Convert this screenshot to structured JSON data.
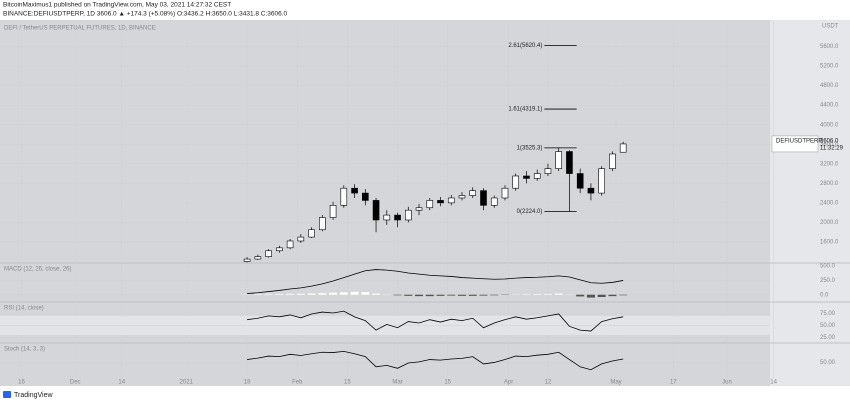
{
  "header": {
    "line1": "BitcoinMaximus1 published on TradingView.com, May 03, 2021 14:27:32 CEST",
    "line2": "BINANCE:DEFIUSDTPERP, 1D  3606.0 ▲ +174.3 (+5.08%)  O:3436.2  H:3650.0  L:3431.8  C:3606.0"
  },
  "footer": {
    "brand": "TradingView"
  },
  "price_tag": {
    "symbol": "DEFIUSDTPERP",
    "price": "3606.0",
    "countdown": "11:32:29"
  },
  "chart_data": [
    {
      "type": "candlestick",
      "title": "DEFI / TetherUS PERPETUAL FUTURES, 1D, BINANCE",
      "axis_unit": "USDT",
      "x": [
        "2021-01-18",
        "2021-01-21",
        "2021-01-24",
        "2021-01-27",
        "2021-01-30",
        "2021-02-02",
        "2021-02-05",
        "2021-02-08",
        "2021-02-11",
        "2021-02-14",
        "2021-02-17",
        "2021-02-20",
        "2021-02-23",
        "2021-02-26",
        "2021-03-01",
        "2021-03-04",
        "2021-03-07",
        "2021-03-10",
        "2021-03-13",
        "2021-03-16",
        "2021-03-19",
        "2021-03-22",
        "2021-03-25",
        "2021-03-28",
        "2021-03-31",
        "2021-04-03",
        "2021-04-06",
        "2021-04-09",
        "2021-04-12",
        "2021-04-15",
        "2021-04-18",
        "2021-04-21",
        "2021-04-24",
        "2021-04-27",
        "2021-04-30",
        "2021-05-03"
      ],
      "open": [
        1200,
        1250,
        1300,
        1420,
        1480,
        1620,
        1700,
        1850,
        2100,
        2350,
        2700,
        2600,
        2450,
        2050,
        2150,
        2050,
        2250,
        2300,
        2450,
        2400,
        2500,
        2550,
        2650,
        2350,
        2500,
        2700,
        2950,
        2900,
        3000,
        3100,
        3450,
        3000,
        2700,
        2600,
        3100,
        3436.2
      ],
      "high": [
        1290,
        1340,
        1450,
        1520,
        1660,
        1760,
        1900,
        2150,
        2420,
        2760,
        2780,
        2680,
        2500,
        2250,
        2200,
        2320,
        2380,
        2500,
        2520,
        2560,
        2620,
        2720,
        2700,
        2550,
        2760,
        3000,
        3050,
        3080,
        3200,
        3525.3,
        3480,
        3100,
        2800,
        3150,
        3450,
        3650
      ],
      "low": [
        1180,
        1230,
        1280,
        1380,
        1450,
        1580,
        1680,
        1820,
        2050,
        2300,
        2500,
        2350,
        1800,
        1950,
        1900,
        2000,
        2150,
        2250,
        2330,
        2350,
        2450,
        2500,
        2250,
        2300,
        2450,
        2650,
        2800,
        2850,
        2950,
        3050,
        2224,
        2600,
        2450,
        2550,
        3050,
        3431.8
      ],
      "close": [
        1250,
        1300,
        1420,
        1480,
        1620,
        1700,
        1850,
        2100,
        2350,
        2700,
        2600,
        2450,
        2050,
        2150,
        2050,
        2250,
        2300,
        2450,
        2400,
        2500,
        2550,
        2650,
        2350,
        2500,
        2700,
        2950,
        2900,
        3000,
        3100,
        3450,
        3000,
        2700,
        2600,
        3100,
        3400,
        3606
      ],
      "up_color": "#ffffff",
      "down_color": "#000000",
      "xlim": [
        "2020-11-10",
        "2021-06-13"
      ],
      "xticks": [
        {
          "value": "2020-11-16",
          "label": "16"
        },
        {
          "value": "2020-12-01",
          "label": "Dec"
        },
        {
          "value": "2020-12-14",
          "label": "14"
        },
        {
          "value": "2021-01-01",
          "label": "2021"
        },
        {
          "value": "2021-01-18",
          "label": "18"
        },
        {
          "value": "2021-02-01",
          "label": "Feb"
        },
        {
          "value": "2021-02-15",
          "label": "15"
        },
        {
          "value": "2021-03-01",
          "label": "Mar"
        },
        {
          "value": "2021-03-15",
          "label": "15"
        },
        {
          "value": "2021-04-01",
          "label": "Apr"
        },
        {
          "value": "2021-04-12",
          "label": "12"
        },
        {
          "value": "2021-05-01",
          "label": "May"
        },
        {
          "value": "2021-05-17",
          "label": "17"
        },
        {
          "value": "2021-06-01",
          "label": "Jun"
        },
        {
          "value": "2021-06-14",
          "label": "14"
        }
      ],
      "ylim": [
        1190,
        6060
      ],
      "yticks": [
        {
          "value": 1600,
          "label": "1600.0"
        },
        {
          "value": 2000,
          "label": "2000.0"
        },
        {
          "value": 2400,
          "label": "2400.0"
        },
        {
          "value": 2800,
          "label": "2800.0"
        },
        {
          "value": 3200,
          "label": "3200.0"
        },
        {
          "value": 3600,
          "label": "3600.0"
        },
        {
          "value": 4000,
          "label": "4000.0"
        },
        {
          "value": 4400,
          "label": "4400.0"
        },
        {
          "value": 4800,
          "label": "4800.0"
        },
        {
          "value": 5200,
          "label": "5200.0"
        },
        {
          "value": 5600,
          "label": "5600.0"
        }
      ],
      "annotations": [
        {
          "label": "2.61(5620.4)",
          "value": 5620.4,
          "x": [
            "2021-04-11",
            "2021-04-20"
          ]
        },
        {
          "label": "1.61(4319.1)",
          "value": 4319.1,
          "x": [
            "2021-04-11",
            "2021-04-20"
          ]
        },
        {
          "label": "1(3525.3)",
          "value": 3525.3,
          "x": [
            "2021-04-11",
            "2021-04-20"
          ]
        },
        {
          "label": "0(2224.0)",
          "value": 2224.0,
          "x": [
            "2021-04-11",
            "2021-04-20"
          ]
        }
      ]
    },
    {
      "type": "macd",
      "title": "MACD (12, 26, close, 26)",
      "series": [
        {
          "name": "MACD",
          "color": "#000000",
          "values": [
            20,
            35,
            55,
            75,
            100,
            120,
            150,
            190,
            240,
            300,
            360,
            420,
            440,
            430,
            410,
            380,
            360,
            340,
            330,
            320,
            300,
            290,
            280,
            270,
            275,
            290,
            300,
            305,
            315,
            330,
            310,
            260,
            210,
            200,
            215,
            250
          ]
        },
        {
          "name": "Histogram",
          "color": "#555555",
          "values": [
            5,
            8,
            10,
            12,
            15,
            18,
            22,
            28,
            35,
            42,
            50,
            45,
            20,
            5,
            -10,
            -20,
            -25,
            -25,
            -20,
            -15,
            -20,
            -20,
            -15,
            -10,
            -5,
            5,
            8,
            10,
            12,
            20,
            5,
            -30,
            -50,
            -40,
            -25,
            -10
          ]
        }
      ],
      "ylim": [
        -110,
        520
      ],
      "yticks": [
        {
          "value": 0,
          "label": "0.0"
        },
        {
          "value": 250,
          "label": "250.0"
        },
        {
          "value": 500,
          "label": "500.0"
        }
      ]
    },
    {
      "type": "line",
      "title": "RSI (14, close)",
      "series": [
        {
          "name": "RSI",
          "color": "#000000",
          "values": [
            62,
            65,
            70,
            68,
            72,
            66,
            74,
            78,
            76,
            80,
            68,
            60,
            40,
            52,
            45,
            58,
            55,
            62,
            57,
            63,
            60,
            65,
            45,
            55,
            62,
            68,
            63,
            66,
            70,
            74,
            48,
            40,
            38,
            58,
            64,
            68
          ]
        }
      ],
      "band": [
        30,
        70
      ],
      "ylim": [
        15,
        95
      ],
      "yticks": [
        {
          "value": 25,
          "label": "25.00"
        },
        {
          "value": 50,
          "label": "50.00"
        },
        {
          "value": 75,
          "label": "75.00"
        }
      ]
    },
    {
      "type": "line",
      "title": "Stoch (14, 3, 3)",
      "series": [
        {
          "name": "%K",
          "color": "#000000",
          "values": [
            60,
            65,
            72,
            70,
            78,
            74,
            80,
            85,
            84,
            88,
            80,
            70,
            35,
            40,
            30,
            48,
            52,
            60,
            58,
            62,
            64,
            70,
            45,
            50,
            60,
            72,
            70,
            75,
            78,
            85,
            60,
            35,
            25,
            45,
            55,
            62
          ]
        }
      ],
      "ylim": [
        0,
        110
      ],
      "yticks": [
        {
          "value": 50,
          "label": "50.00"
        }
      ]
    }
  ]
}
